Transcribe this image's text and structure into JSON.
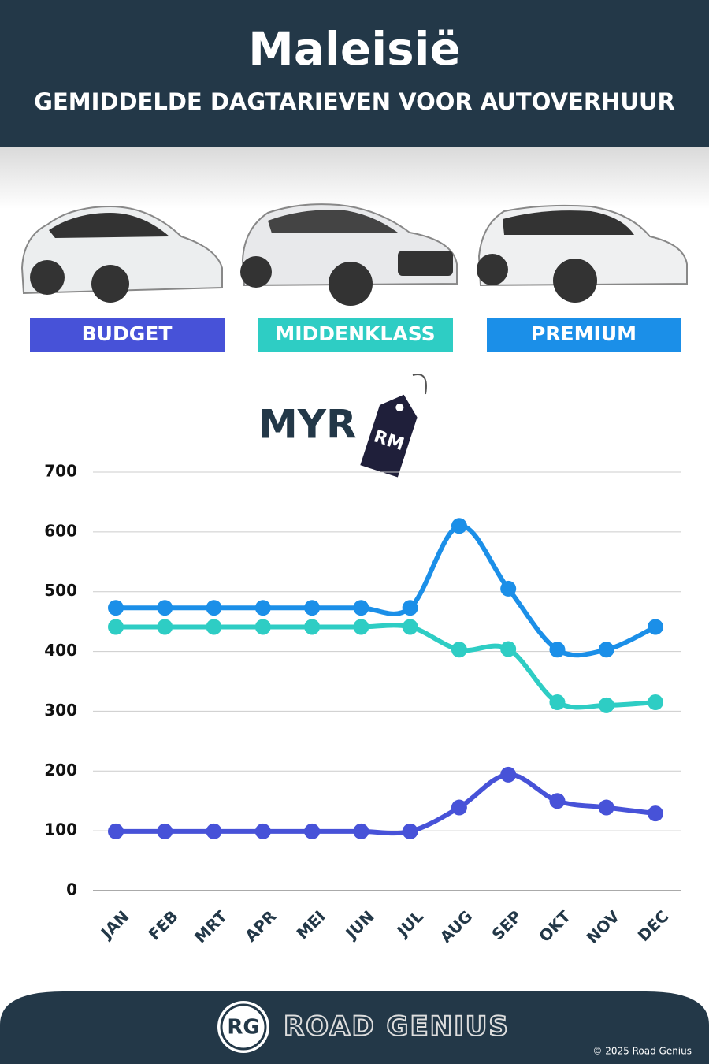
{
  "chart_data": {
    "type": "line",
    "title": "Maleisië",
    "subtitle": "GEMIDDELDE DAGTARIEVEN VOOR AUTOVERHUUR",
    "unit_label": "MYR",
    "tag_label": "RM",
    "categories": [
      "JAN",
      "FEB",
      "MRT",
      "APR",
      "MEI",
      "JUN",
      "JUL",
      "AUG",
      "SEP",
      "OKT",
      "NOV",
      "DEC"
    ],
    "series": [
      {
        "name": "BUDGET",
        "color": "#4752d8",
        "values": [
          99,
          99,
          99,
          99,
          99,
          99,
          99,
          139,
          194,
          150,
          139,
          129
        ]
      },
      {
        "name": "MIDDENKLASS",
        "color": "#2ecdc4",
        "values": [
          441,
          441,
          441,
          441,
          441,
          441,
          441,
          403,
          404,
          315,
          310,
          315
        ]
      },
      {
        "name": "PREMIUM",
        "color": "#1b8fe8",
        "values": [
          473,
          473,
          473,
          473,
          473,
          473,
          473,
          610,
          505,
          403,
          403,
          441
        ]
      }
    ],
    "ylim": [
      0,
      700
    ],
    "yticks": [
      0,
      100,
      200,
      300,
      400,
      500,
      600,
      700
    ],
    "grid": true
  },
  "footer": {
    "logo": "RG",
    "brand": "ROAD GENIUS",
    "copyright": "© 2025 Road Genius"
  }
}
